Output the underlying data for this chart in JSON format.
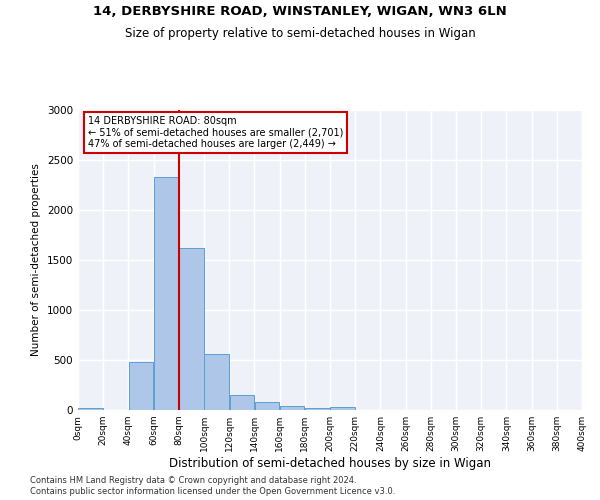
{
  "title_line1": "14, DERBYSHIRE ROAD, WINSTANLEY, WIGAN, WN3 6LN",
  "title_line2": "Size of property relative to semi-detached houses in Wigan",
  "xlabel": "Distribution of semi-detached houses by size in Wigan",
  "ylabel": "Number of semi-detached properties",
  "bin_edges": [
    0,
    20,
    40,
    60,
    80,
    100,
    120,
    140,
    160,
    180,
    200,
    220,
    240,
    260,
    280,
    300,
    320,
    340,
    360,
    380,
    400
  ],
  "bar_values": [
    25,
    0,
    480,
    2330,
    1620,
    560,
    150,
    85,
    40,
    20,
    30,
    0,
    0,
    0,
    0,
    0,
    0,
    0,
    0,
    0
  ],
  "bar_color": "#aec6e8",
  "bar_edge_color": "#5a9fd4",
  "property_size": 80,
  "annotation_title": "14 DERBYSHIRE ROAD: 80sqm",
  "annotation_line2": "← 51% of semi-detached houses are smaller (2,701)",
  "annotation_line3": "47% of semi-detached houses are larger (2,449) →",
  "vline_color": "#cc0000",
  "annotation_box_edge_color": "#cc0000",
  "ylim": [
    0,
    3000
  ],
  "xlim": [
    0,
    400
  ],
  "background_color": "#eef2f8",
  "grid_color": "#ffffff",
  "footer_line1": "Contains HM Land Registry data © Crown copyright and database right 2024.",
  "footer_line2": "Contains public sector information licensed under the Open Government Licence v3.0."
}
